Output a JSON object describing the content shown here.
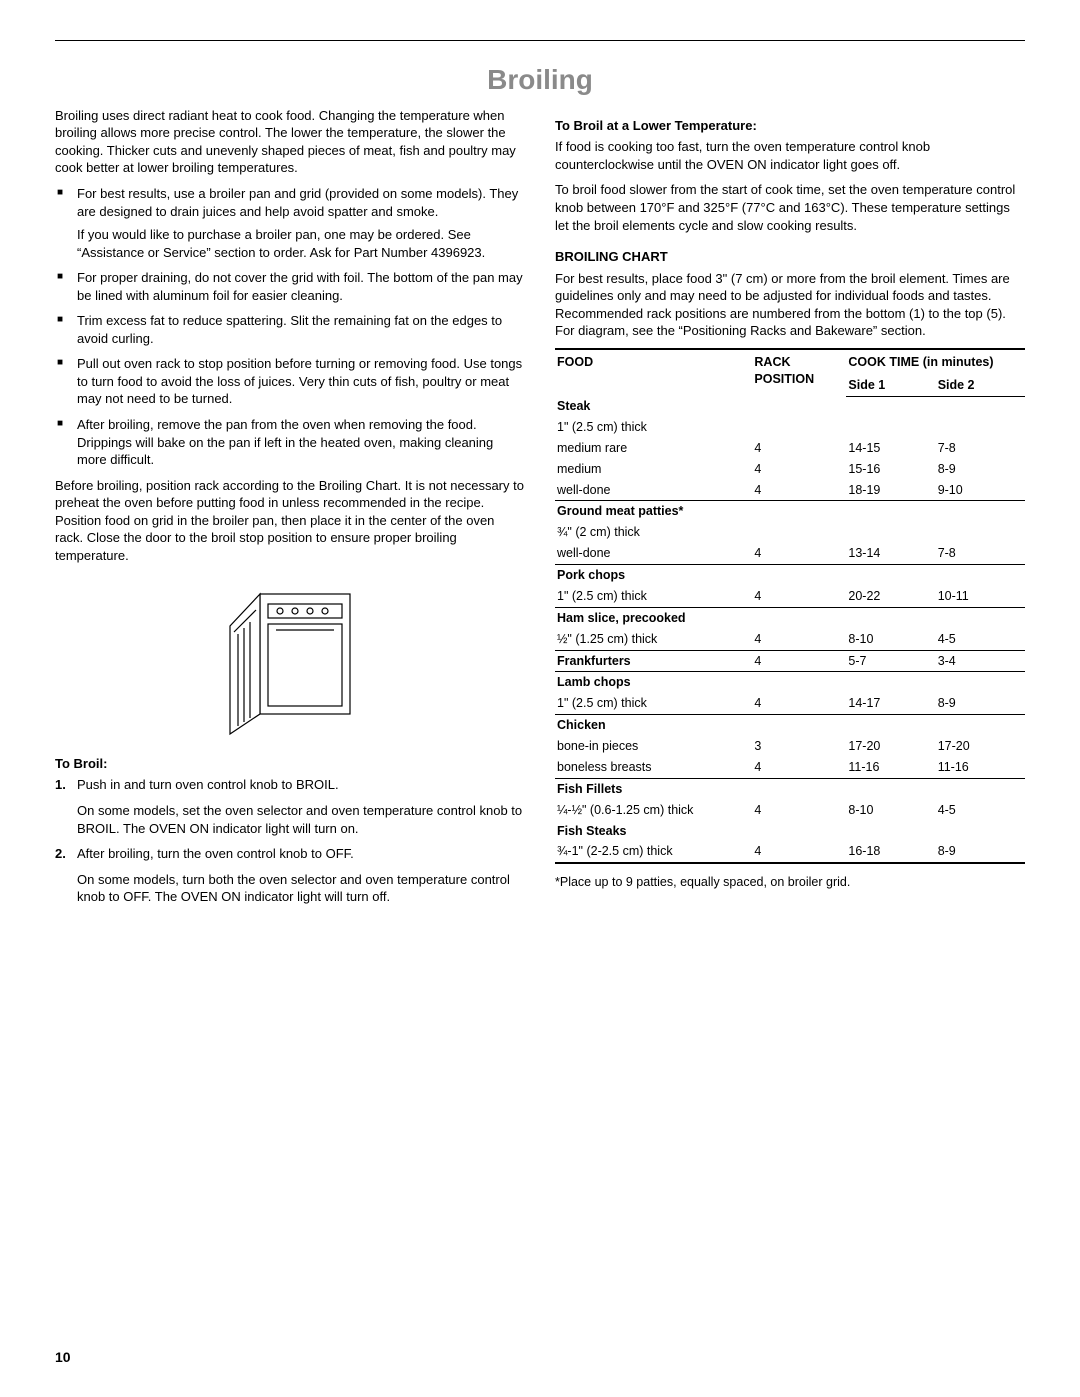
{
  "title": "Broiling",
  "page_number": "10",
  "left": {
    "intro": "Broiling uses direct radiant heat to cook food. Changing the temperature when broiling allows more precise control. The lower the temperature, the slower the cooking. Thicker cuts and unevenly shaped pieces of meat, fish and poultry may cook better at lower broiling temperatures.",
    "bullets": [
      {
        "p1": "For best results, use a broiler pan and grid (provided on some models). They are designed to drain juices and help avoid spatter and smoke.",
        "p2": "If you would like to purchase a broiler pan, one may be ordered. See “Assistance or Service” section to order. Ask for Part Number 4396923."
      },
      {
        "p1": "For proper draining, do not cover the grid with foil. The bottom of the pan may be lined with aluminum foil for easier cleaning."
      },
      {
        "p1": "Trim excess fat to reduce spattering. Slit the remaining fat on the edges to avoid curling."
      },
      {
        "p1": "Pull out oven rack to stop position before turning or removing food. Use tongs to turn food to avoid the loss of juices. Very thin cuts of fish, poultry or meat may not need to be turned."
      },
      {
        "p1": "After broiling, remove the pan from the oven when removing the food. Drippings will bake on the pan if left in the heated oven, making cleaning more difficult."
      }
    ],
    "before": "Before broiling, position rack according to the Broiling Chart. It is not necessary to preheat the oven before putting food in unless recommended in the recipe. Position food on grid in the broiler pan, then place it in the center of the oven rack. Close the door to the broil stop position to ensure proper broiling temperature.",
    "to_broil_head": "To Broil:",
    "steps": [
      {
        "num": "1.",
        "p1": "Push in and turn oven control knob to BROIL.",
        "p2": "On some models, set the oven selector and oven temperature control knob to BROIL. The OVEN ON indicator light will turn on."
      },
      {
        "num": "2.",
        "p1": "After broiling, turn the oven control knob to OFF.",
        "p2": "On some models, turn both the oven selector and oven temperature control knob to OFF. The OVEN ON indicator light will turn off."
      }
    ]
  },
  "right": {
    "lower_head": "To Broil at a Lower Temperature:",
    "lower_p1": "If food is cooking too fast, turn the oven temperature control knob counterclockwise until the OVEN ON indicator light goes off.",
    "lower_p2": "To broil food slower from the start of cook time, set the oven temperature control knob between 170°F and 325°F (77°C and 163°C). These temperature settings let the broil elements cycle and slow cooking results.",
    "chart_head": "BROILING CHART",
    "chart_intro": "For best results, place food 3\" (7 cm) or more from the broil element. Times are guidelines only and may need to be adjusted for individual foods and tastes. Recommended rack positions are numbered from the bottom (1) to the top (5). For diagram, see the “Positioning Racks and Bakeware” section.",
    "th_food": "FOOD",
    "th_rack": "RACK POSITION",
    "th_cook": "COOK TIME (in minutes)",
    "th_side1": "Side 1",
    "th_side2": "Side 2",
    "groups": [
      {
        "title": "Steak",
        "sub": "1\" (2.5 cm) thick",
        "rows": [
          {
            "label": "medium rare",
            "rack": "4",
            "s1": "14-15",
            "s2": "7-8"
          },
          {
            "label": "medium",
            "rack": "4",
            "s1": "15-16",
            "s2": "8-9"
          },
          {
            "label": "well-done",
            "rack": "4",
            "s1": "18-19",
            "s2": "9-10"
          }
        ]
      },
      {
        "title": "Ground meat patties*",
        "sub": "¾\" (2 cm) thick",
        "rows": [
          {
            "label": "well-done",
            "rack": "4",
            "s1": "13-14",
            "s2": "7-8"
          }
        ]
      },
      {
        "title": "Pork chops",
        "sub": "",
        "rows": [
          {
            "label": "1\" (2.5 cm) thick",
            "rack": "4",
            "s1": "20-22",
            "s2": "10-11"
          }
        ]
      },
      {
        "title": "Ham slice, precooked",
        "sub": "",
        "rows": [
          {
            "label": "½\" (1.25 cm) thick",
            "rack": "4",
            "s1": "8-10",
            "s2": "4-5"
          }
        ]
      },
      {
        "title": "Frankfurters",
        "sub": "",
        "rows": [
          {
            "label": "",
            "rack": "4",
            "s1": "5-7",
            "s2": "3-4"
          }
        ],
        "inline": true
      },
      {
        "title": "Lamb chops",
        "sub": "",
        "rows": [
          {
            "label": "1\" (2.5 cm) thick",
            "rack": "4",
            "s1": "14-17",
            "s2": "8-9"
          }
        ]
      },
      {
        "title": "Chicken",
        "sub": "",
        "rows": [
          {
            "label": "bone-in pieces",
            "rack": "3",
            "s1": "17-20",
            "s2": "17-20"
          },
          {
            "label": "boneless breasts",
            "rack": "4",
            "s1": "11-16",
            "s2": "11-16"
          }
        ]
      },
      {
        "title": "Fish Fillets",
        "sub": "",
        "rows": [
          {
            "label": "¼-½\" (0.6-1.25 cm) thick",
            "rack": "4",
            "s1": "8-10",
            "s2": "4-5"
          }
        ],
        "title2": "Fish Steaks",
        "rows2": [
          {
            "label": "¾-1\" (2-2.5 cm) thick",
            "rack": "4",
            "s1": "16-18",
            "s2": "8-9"
          }
        ]
      }
    ],
    "footnote": "*Place up to 9 patties, equally spaced, on broiler grid."
  }
}
